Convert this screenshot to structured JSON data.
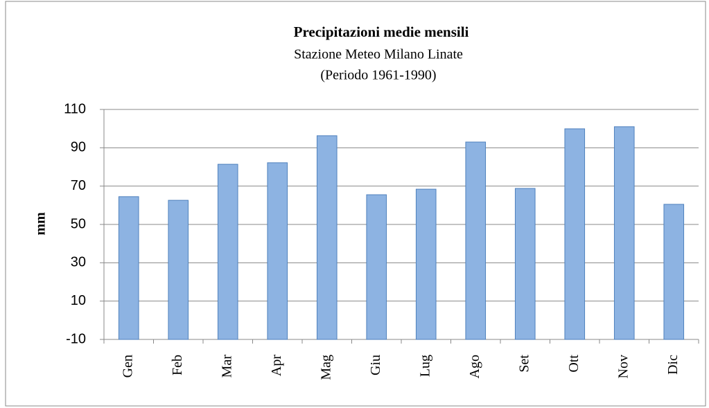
{
  "chart_data": {
    "type": "bar",
    "title": "Precipitazioni medie mensili",
    "subtitle": "Stazione Meteo Milano Linate",
    "subtitle2": "(Periodo 1961-1990)",
    "y_label": "mm",
    "categories": [
      "Gen",
      "Feb",
      "Mar",
      "Apr",
      "Mag",
      "Giu",
      "Lug",
      "Ago",
      "Set",
      "Ott",
      "Nov",
      "Dic"
    ],
    "values": [
      64.5,
      62.6,
      81.4,
      82.2,
      96.3,
      65.5,
      68.4,
      93,
      68.8,
      99.9,
      101,
      60.5
    ],
    "color": "#8db3e2",
    "ylim": [
      -10,
      110
    ],
    "yticks": [
      -10,
      10,
      30,
      50,
      70,
      90,
      110
    ],
    "grid": true
  }
}
